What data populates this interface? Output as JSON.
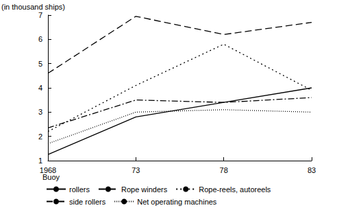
{
  "chart_data": {
    "type": "line",
    "y_label": "(in thousand ships)",
    "legend_title": "Buoy",
    "categories": [
      "1968",
      "73",
      "78",
      "83"
    ],
    "series": [
      {
        "name": "rollers",
        "color": "#000000",
        "line_style": "solid",
        "values": [
          1.25,
          2.8,
          3.4,
          4.0
        ]
      },
      {
        "name": "Rope winders",
        "color": "#000000",
        "line_style": "dashed",
        "values": [
          4.6,
          6.95,
          6.2,
          6.7
        ]
      },
      {
        "name": "Rope-reels, autoreels",
        "color": "#000000",
        "line_style": "dotted",
        "values": [
          2.2,
          4.1,
          5.8,
          3.9
        ]
      },
      {
        "name": "side rollers",
        "color": "#000000",
        "line_style": "dashdot",
        "values": [
          2.35,
          3.5,
          3.4,
          3.6
        ]
      },
      {
        "name": "Net operating machines",
        "color": "#000000",
        "line_style": "dense_dotted",
        "values": [
          1.7,
          3.0,
          3.1,
          3.0
        ]
      }
    ],
    "ylim": [
      1,
      7
    ],
    "yticks": [
      1,
      2,
      3,
      4,
      5,
      6,
      7
    ],
    "grid": false,
    "legend": "bottom"
  }
}
